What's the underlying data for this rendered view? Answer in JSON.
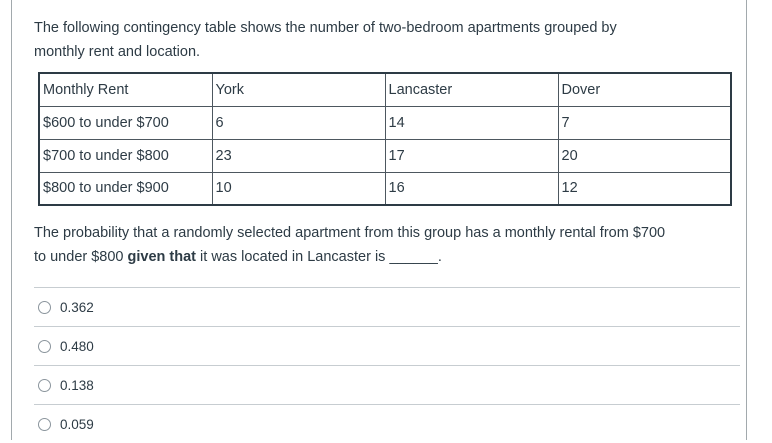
{
  "intro": {
    "line1": "The following contingency table shows the number of two-bedroom apartments grouped by",
    "line2": "monthly rent and location."
  },
  "table": {
    "headers": [
      "Monthly Rent",
      "York",
      "Lancaster",
      "Dover"
    ],
    "rows": [
      [
        "$600 to under $700",
        "6",
        "14",
        "7"
      ],
      [
        "$700 to under $800",
        "23",
        "17",
        "20"
      ],
      [
        "$800 to under $900",
        "10",
        "16",
        "12"
      ]
    ]
  },
  "question": {
    "line1": "The probability that a randomly selected apartment from this group has a monthly rental from $700",
    "line2_before_bold": "to under $800 ",
    "bold": "given that",
    "line2_after_bold": " it was located in Lancaster is ______."
  },
  "options": [
    {
      "label": "0.362"
    },
    {
      "label": "0.480"
    },
    {
      "label": "0.138"
    },
    {
      "label": "0.059"
    }
  ],
  "colors": {
    "text": "#2d3b45",
    "separator": "#c7cdd1",
    "panel_border": "#a2a9ad",
    "table_border": "#2d3b45",
    "radio_border": "#8b959d"
  }
}
